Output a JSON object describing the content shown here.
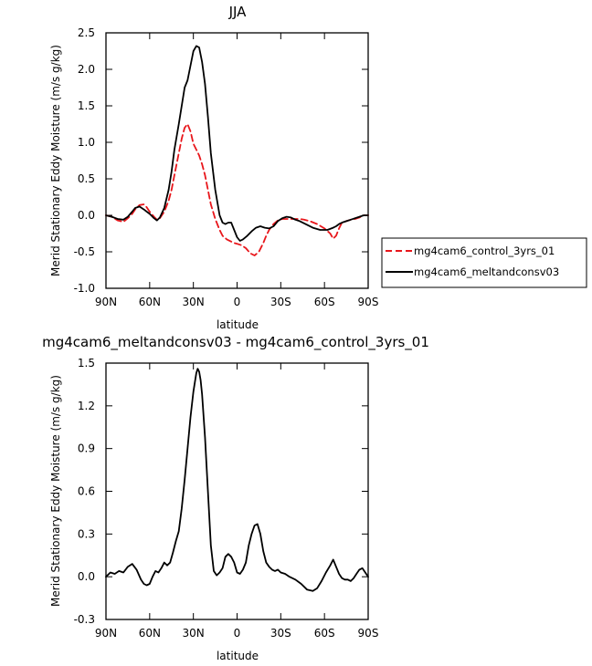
{
  "chart_data": [
    {
      "type": "line",
      "title": "JJA",
      "xlabel": "latitude",
      "ylabel": "Merid Stationary Eddy Moisture (m/s g/kg)",
      "xlim": [
        90,
        -90
      ],
      "ylim": [
        -1.0,
        2.5
      ],
      "xticks": [
        90,
        60,
        30,
        0,
        -30,
        -60,
        -90
      ],
      "xtick_labels": [
        "90N",
        "60N",
        "30N",
        "0",
        "30S",
        "60S",
        "90S"
      ],
      "yticks": [
        -1.0,
        -0.5,
        0.0,
        0.5,
        1.0,
        1.5,
        2.0,
        2.5
      ],
      "ytick_labels": [
        "-1.0",
        "-0.5",
        "0.0",
        "0.5",
        "1.0",
        "1.5",
        "2.0",
        "2.5"
      ],
      "grid": false,
      "legend_position": "outside-right",
      "series": [
        {
          "name": "mg4cam6_control_3yrs_01",
          "color": "#e8161b",
          "dash": "dashed",
          "x": [
            90,
            86,
            82,
            78,
            75,
            72,
            70,
            67,
            64,
            62,
            60,
            57,
            55,
            53,
            50,
            47,
            45,
            43,
            40,
            38,
            36,
            34,
            32,
            30,
            28,
            26,
            24,
            22,
            20,
            18,
            15,
            12,
            10,
            7,
            4,
            2,
            0,
            -3,
            -6,
            -9,
            -12,
            -15,
            -18,
            -20,
            -22,
            -25,
            -28,
            -31,
            -34,
            -37,
            -40,
            -43,
            -46,
            -50,
            -55,
            -60,
            -64,
            -66,
            -68,
            -70,
            -72,
            -75,
            -78,
            -81,
            -84,
            -87,
            -90
          ],
          "y": [
            0.0,
            -0.02,
            -0.07,
            -0.09,
            -0.04,
            0.02,
            0.08,
            0.14,
            0.15,
            0.11,
            0.05,
            -0.02,
            -0.06,
            -0.04,
            0.05,
            0.2,
            0.35,
            0.55,
            0.85,
            1.05,
            1.2,
            1.25,
            1.15,
            0.98,
            0.9,
            0.82,
            0.7,
            0.55,
            0.35,
            0.15,
            -0.05,
            -0.2,
            -0.28,
            -0.33,
            -0.36,
            -0.38,
            -0.39,
            -0.41,
            -0.45,
            -0.52,
            -0.55,
            -0.5,
            -0.38,
            -0.28,
            -0.2,
            -0.12,
            -0.07,
            -0.05,
            -0.05,
            -0.05,
            -0.05,
            -0.05,
            -0.06,
            -0.08,
            -0.12,
            -0.18,
            -0.25,
            -0.32,
            -0.28,
            -0.18,
            -0.1,
            -0.08,
            -0.06,
            -0.05,
            -0.03,
            0.0,
            0.0
          ]
        },
        {
          "name": "mg4cam6_meltandconsv03",
          "color": "#000000",
          "dash": "solid",
          "x": [
            90,
            86,
            82,
            78,
            75,
            72,
            70,
            67,
            64,
            62,
            60,
            57,
            55,
            53,
            50,
            47,
            45,
            43,
            40,
            38,
            36,
            34,
            32,
            30,
            28,
            26,
            24,
            22,
            20,
            18,
            15,
            12,
            10,
            8,
            6,
            4,
            2,
            0,
            -2,
            -4,
            -7,
            -10,
            -13,
            -16,
            -19,
            -22,
            -25,
            -28,
            -31,
            -34,
            -37,
            -40,
            -43,
            -47,
            -52,
            -57,
            -62,
            -66,
            -68,
            -70,
            -72,
            -75,
            -78,
            -81,
            -84,
            -87,
            -90
          ],
          "y": [
            0.0,
            -0.02,
            -0.05,
            -0.06,
            -0.02,
            0.05,
            0.1,
            0.12,
            0.08,
            0.05,
            0.02,
            -0.04,
            -0.07,
            -0.03,
            0.1,
            0.35,
            0.6,
            0.9,
            1.25,
            1.5,
            1.75,
            1.85,
            2.05,
            2.25,
            2.32,
            2.3,
            2.1,
            1.8,
            1.35,
            0.85,
            0.35,
            0.0,
            -0.1,
            -0.12,
            -0.1,
            -0.1,
            -0.2,
            -0.3,
            -0.35,
            -0.33,
            -0.28,
            -0.22,
            -0.17,
            -0.15,
            -0.17,
            -0.18,
            -0.15,
            -0.08,
            -0.04,
            -0.02,
            -0.03,
            -0.06,
            -0.08,
            -0.12,
            -0.17,
            -0.2,
            -0.2,
            -0.17,
            -0.15,
            -0.12,
            -0.1,
            -0.08,
            -0.06,
            -0.04,
            -0.02,
            0.0,
            0.0
          ]
        }
      ]
    },
    {
      "type": "line",
      "title": "mg4cam6_meltandconsv03 - mg4cam6_control_3yrs_01",
      "xlabel": "latitude",
      "ylabel": "Merid Stationary Eddy Moisture (m/s g/kg)",
      "xlim": [
        90,
        -90
      ],
      "ylim": [
        -0.3,
        1.5
      ],
      "xticks": [
        90,
        60,
        30,
        0,
        -30,
        -60,
        -90
      ],
      "xtick_labels": [
        "90N",
        "60N",
        "30N",
        "0",
        "30S",
        "60S",
        "90S"
      ],
      "yticks": [
        -0.3,
        0.0,
        0.3,
        0.6,
        0.9,
        1.2,
        1.5
      ],
      "ytick_labels": [
        "-0.3",
        "0.0",
        "0.3",
        "0.6",
        "0.9",
        "1.2",
        "1.5"
      ],
      "grid": false,
      "series": [
        {
          "color": "#000000",
          "dash": "solid",
          "x": [
            90,
            87,
            84,
            81,
            78,
            75,
            72,
            69,
            66,
            64,
            62,
            60,
            58,
            56,
            54,
            52,
            50,
            48,
            46,
            44,
            42,
            40,
            38,
            36,
            34,
            32,
            30,
            28,
            27,
            26,
            25,
            24,
            22,
            20,
            18,
            16,
            14,
            12,
            10,
            8,
            6,
            4,
            2,
            0,
            -2,
            -4,
            -6,
            -8,
            -10,
            -12,
            -14,
            -16,
            -18,
            -20,
            -22,
            -24,
            -26,
            -28,
            -30,
            -33,
            -36,
            -40,
            -44,
            -48,
            -52,
            -55,
            -58,
            -61,
            -64,
            -66,
            -68,
            -70,
            -72,
            -74,
            -76,
            -78,
            -80,
            -82,
            -84,
            -86,
            -88,
            -90
          ],
          "y": [
            0.0,
            0.03,
            0.02,
            0.04,
            0.03,
            0.07,
            0.09,
            0.05,
            -0.02,
            -0.05,
            -0.06,
            -0.05,
            0.0,
            0.04,
            0.03,
            0.06,
            0.1,
            0.08,
            0.1,
            0.17,
            0.25,
            0.32,
            0.48,
            0.68,
            0.9,
            1.12,
            1.3,
            1.43,
            1.46,
            1.44,
            1.38,
            1.28,
            0.98,
            0.6,
            0.22,
            0.04,
            0.01,
            0.03,
            0.06,
            0.14,
            0.16,
            0.14,
            0.1,
            0.03,
            0.02,
            0.05,
            0.1,
            0.22,
            0.3,
            0.36,
            0.37,
            0.3,
            0.18,
            0.1,
            0.07,
            0.05,
            0.04,
            0.05,
            0.03,
            0.02,
            0.0,
            -0.02,
            -0.05,
            -0.09,
            -0.1,
            -0.08,
            -0.03,
            0.03,
            0.08,
            0.12,
            0.07,
            0.02,
            -0.01,
            -0.02,
            -0.02,
            -0.03,
            -0.01,
            0.02,
            0.05,
            0.06,
            0.03,
            0.0
          ]
        }
      ]
    }
  ]
}
